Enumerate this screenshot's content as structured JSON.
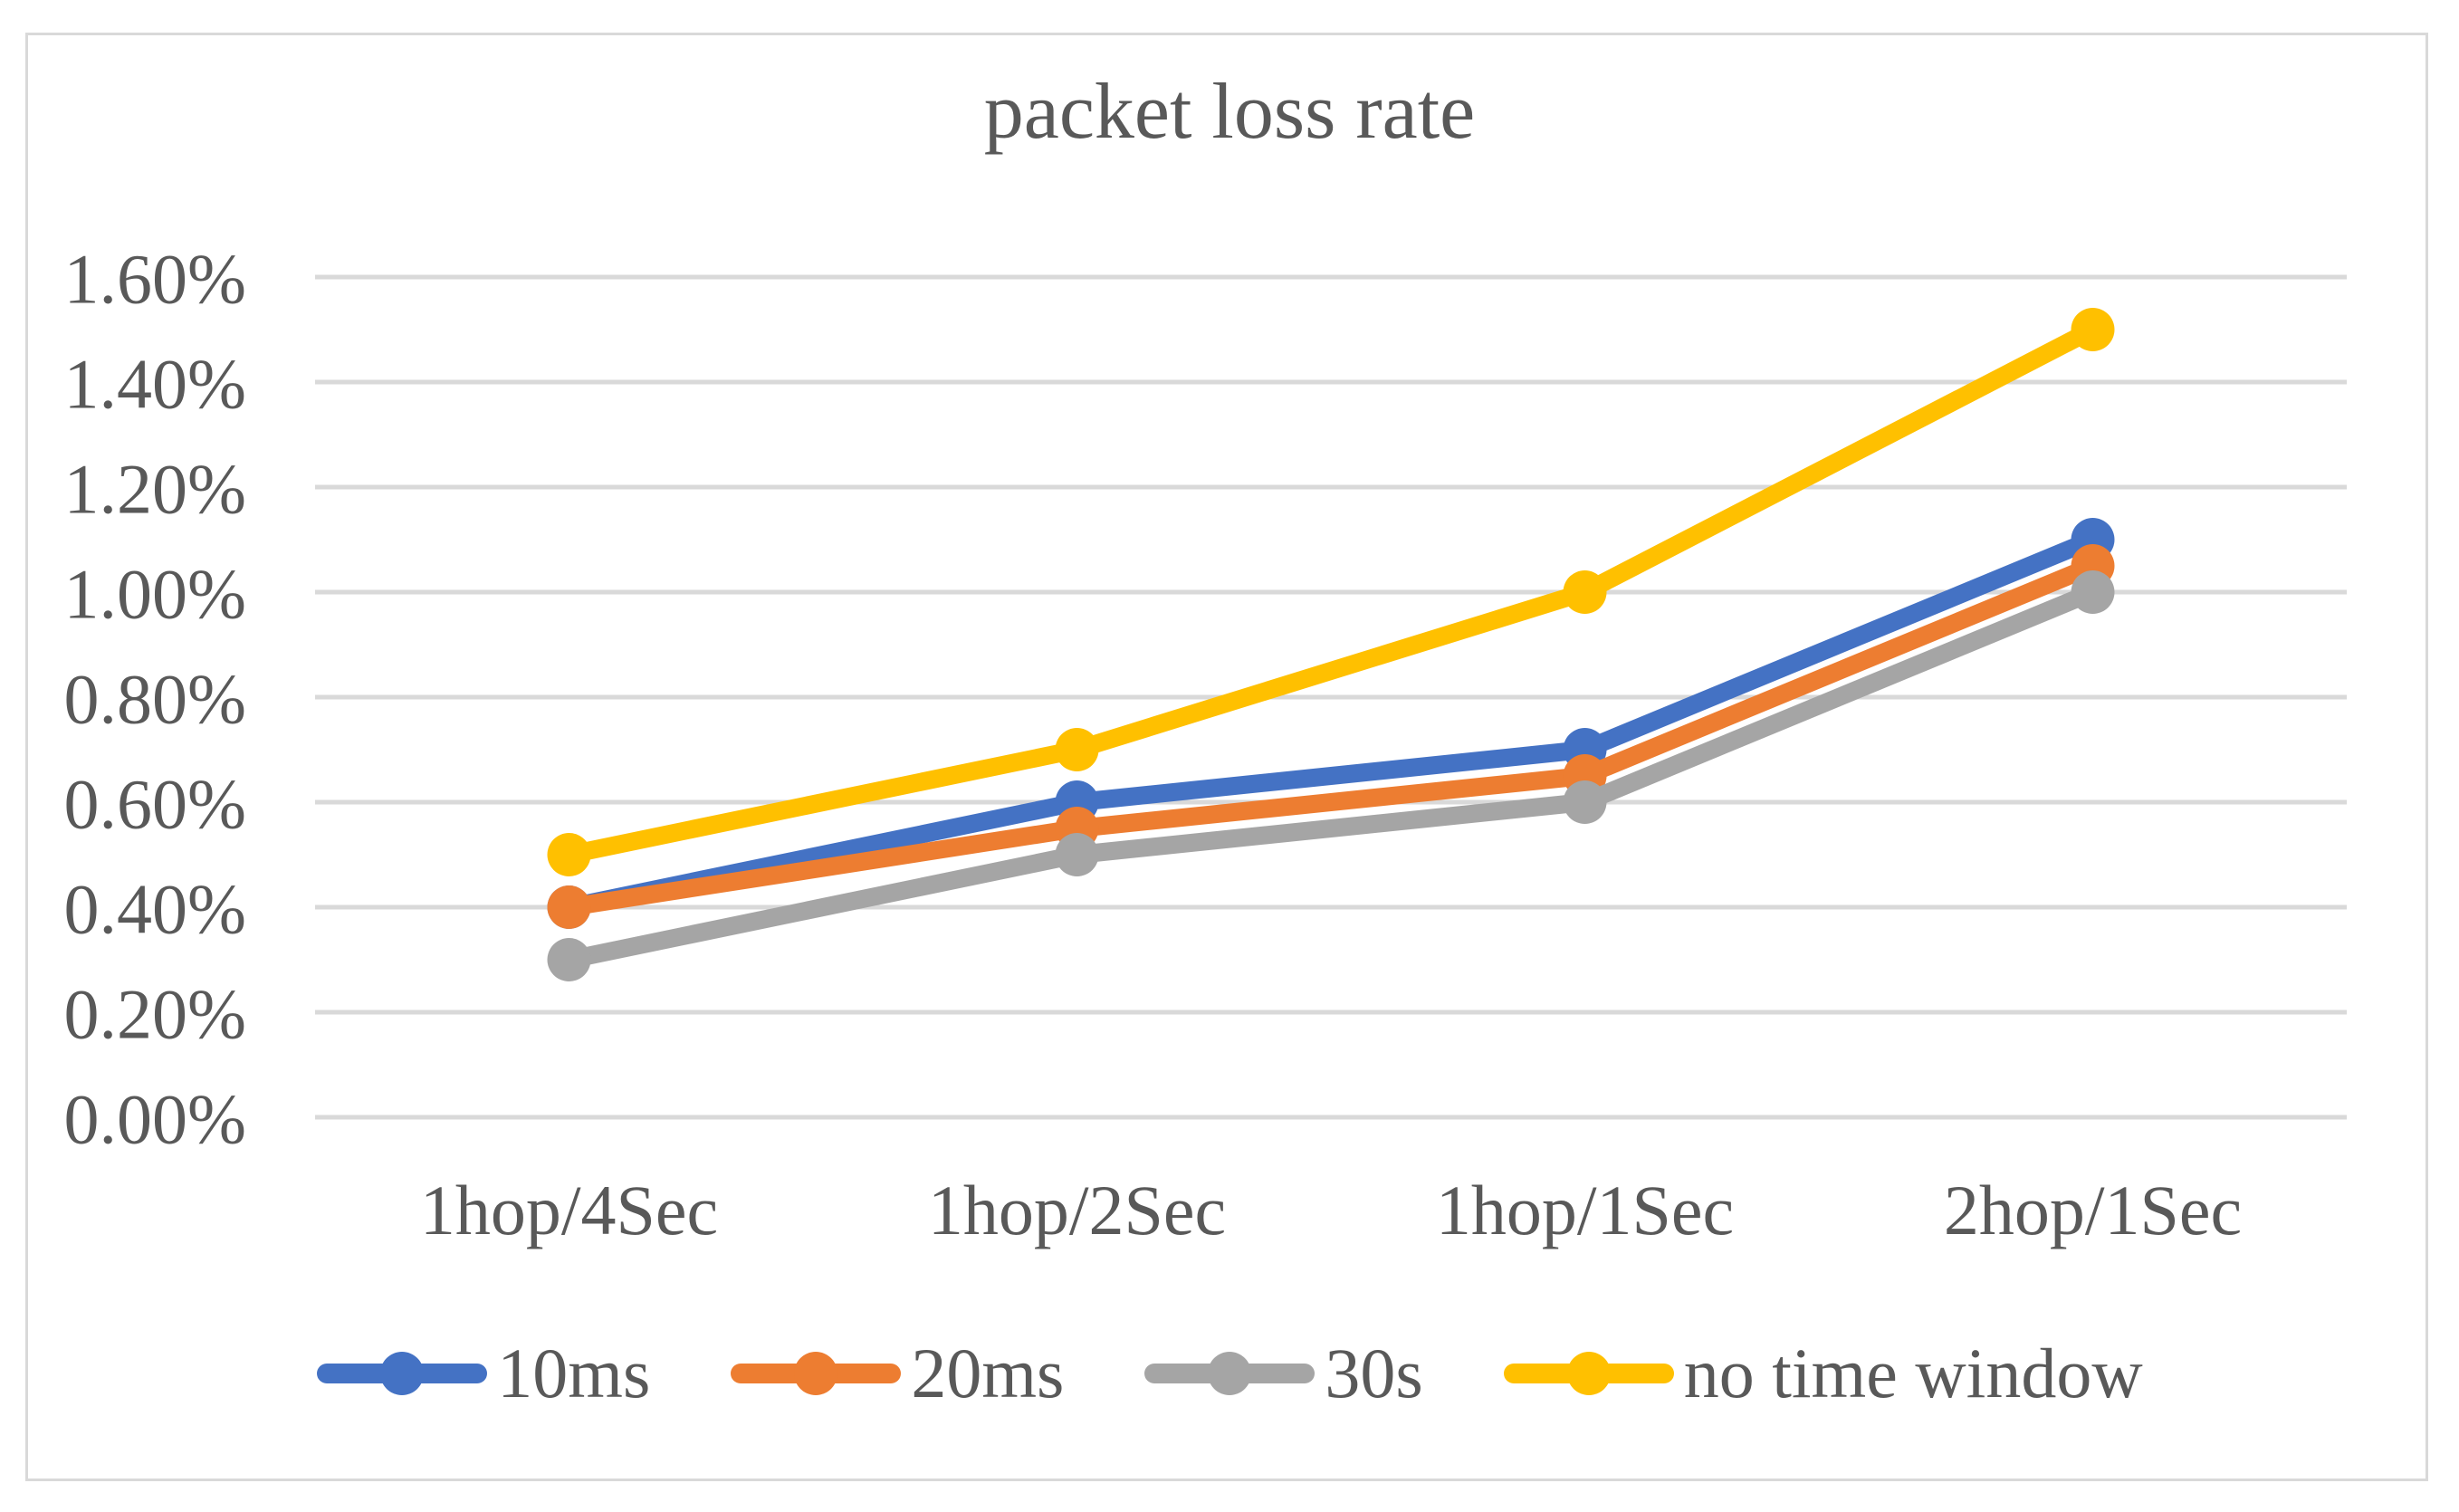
{
  "chart_data": {
    "type": "line",
    "title": "packet loss rate",
    "categories": [
      "1hop/4Sec",
      "1hop/2Sec",
      "1hop/1Sec",
      "2hop/1Sec"
    ],
    "series": [
      {
        "name": "10ms",
        "color": "#4472C4",
        "values": [
          0.4,
          0.6,
          0.7,
          1.1
        ]
      },
      {
        "name": "20ms",
        "color": "#ED7D31",
        "values": [
          0.4,
          0.55,
          0.65,
          1.05
        ]
      },
      {
        "name": "30s",
        "color": "#A5A5A5",
        "values": [
          0.3,
          0.5,
          0.6,
          1.0
        ]
      },
      {
        "name": "no time window",
        "color": "#FFC000",
        "values": [
          0.5,
          0.7,
          1.0,
          1.5
        ]
      }
    ],
    "values_unit": "percent",
    "y_axis": {
      "min": 0,
      "max": 1.6,
      "step": 0.2,
      "tick_labels": [
        "0.00%",
        "0.20%",
        "0.40%",
        "0.60%",
        "0.80%",
        "1.00%",
        "1.20%",
        "1.40%",
        "1.60%"
      ]
    },
    "grid": true,
    "legend_position": "bottom",
    "colors": {
      "text": "#595959",
      "gridline": "#D9D9D9",
      "frame_border": "#D9D9D9",
      "background": "#FFFFFF"
    }
  }
}
